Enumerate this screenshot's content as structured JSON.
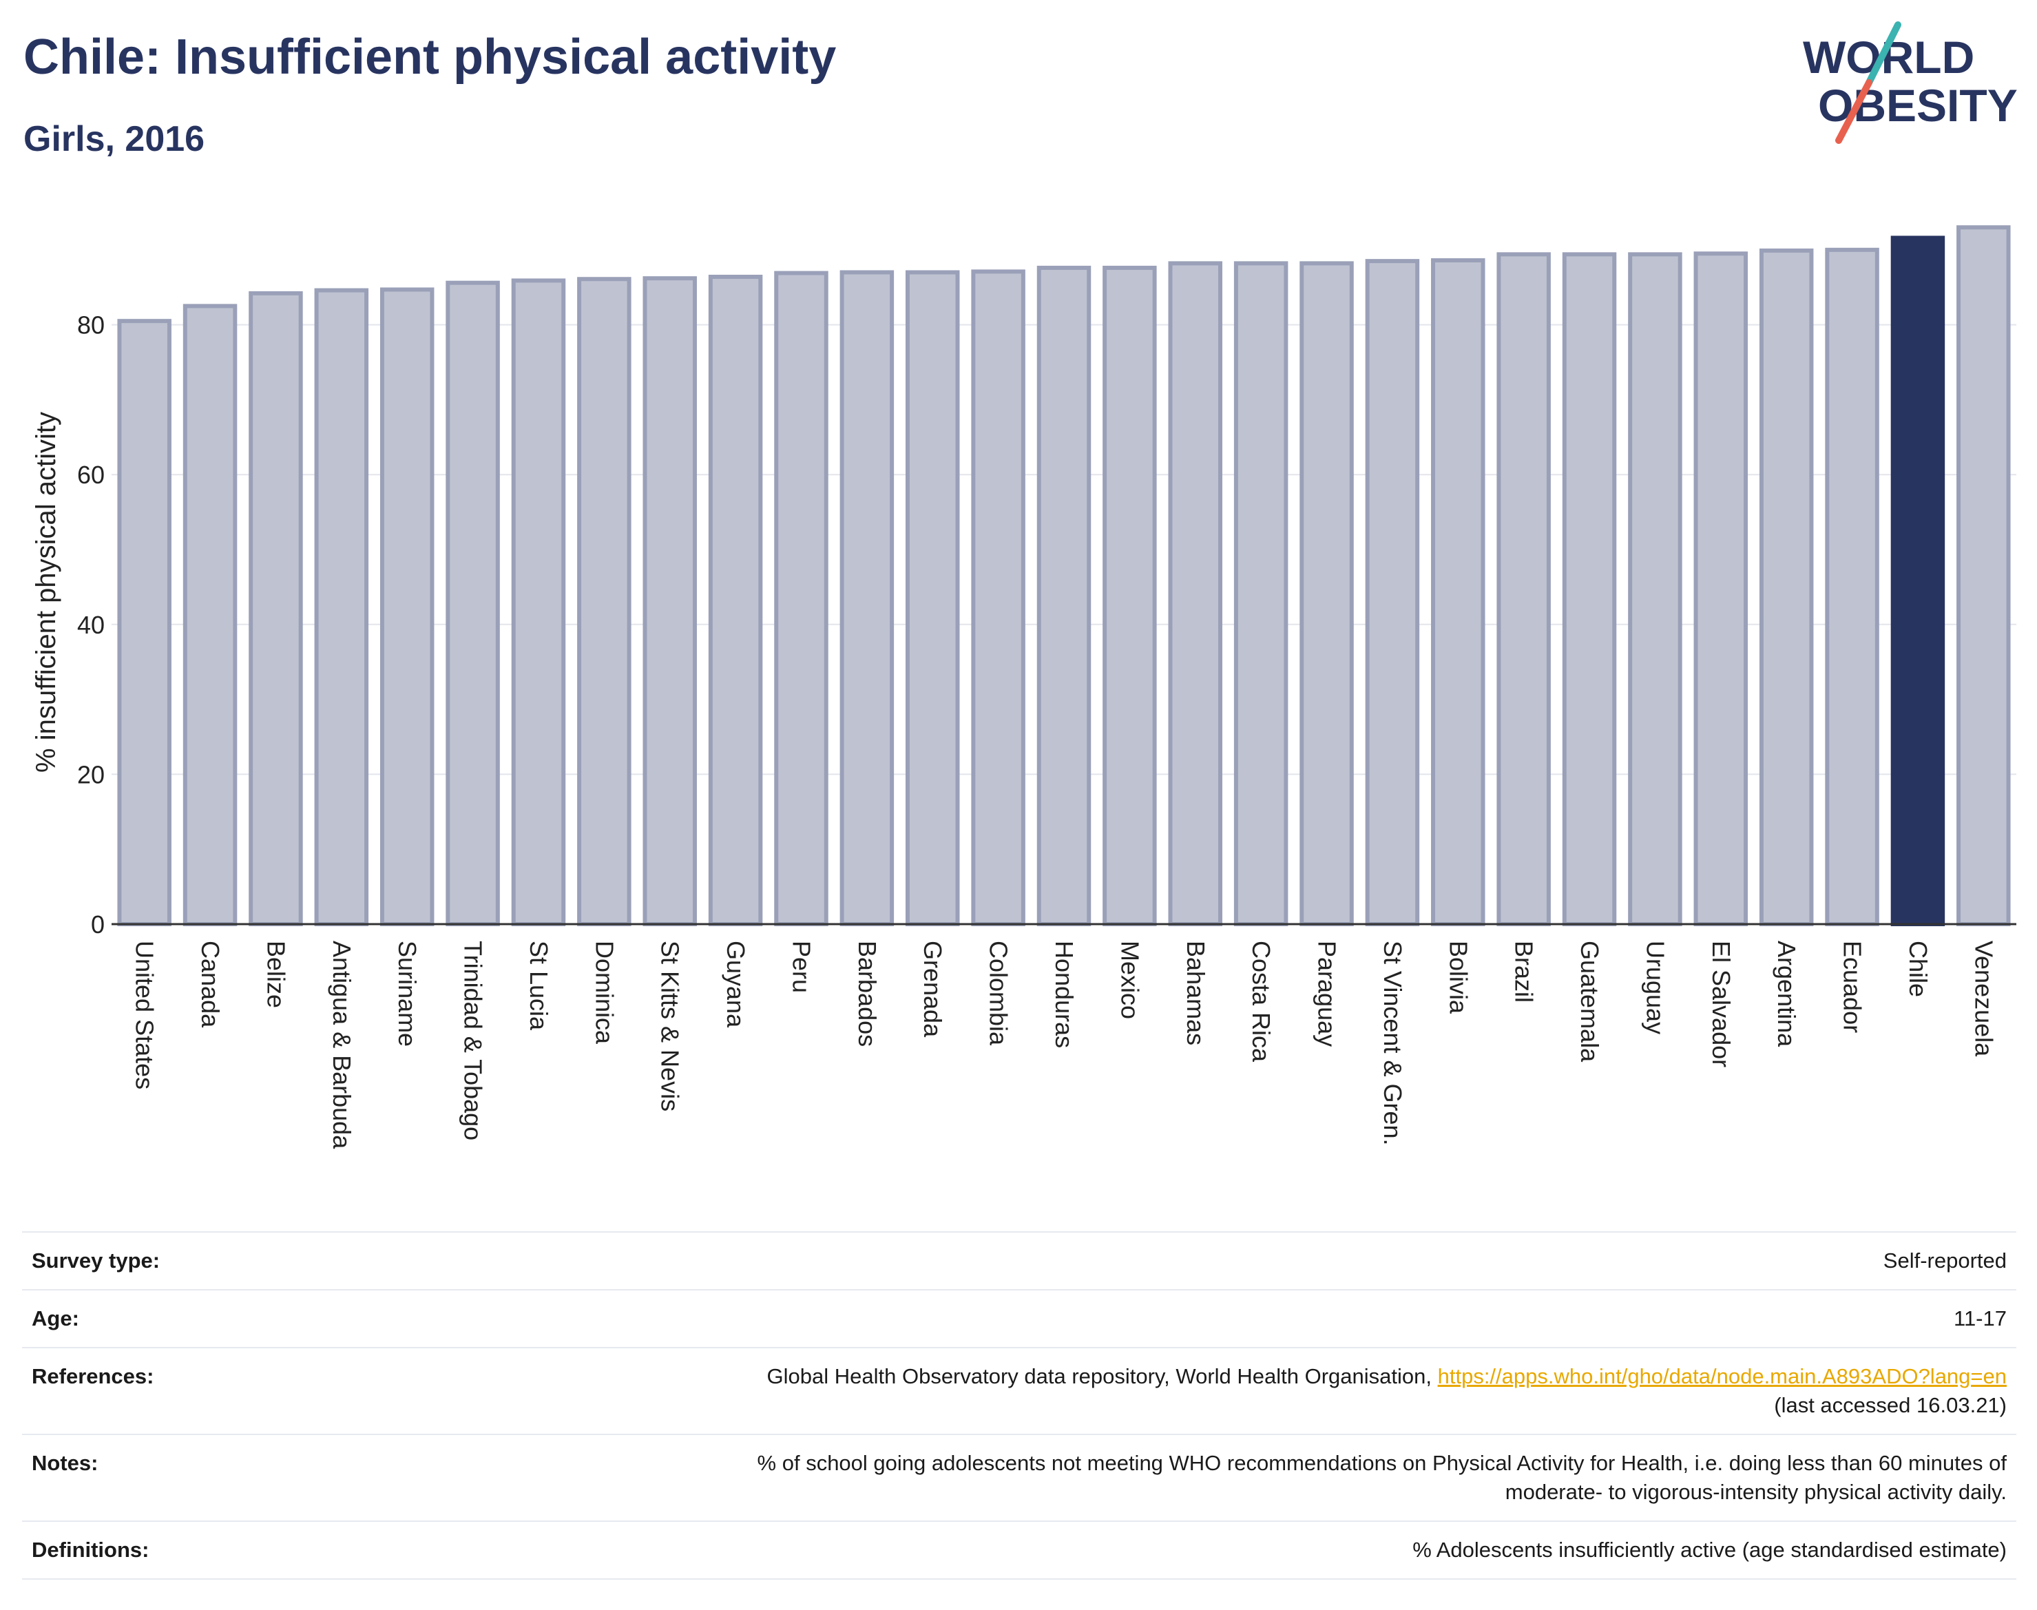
{
  "header": {
    "title": "Chile: Insufficient physical activity",
    "subtitle": "Girls, 2016"
  },
  "logo": {
    "line1": "WORLD",
    "line2": "OBESITY"
  },
  "colors": {
    "brand_navy": "#283460",
    "bar_default": "#bfc3d1",
    "bar_default_stroke": "#9aa0b8",
    "bar_highlight": "#283460",
    "logo_teal": "#3bb3b0",
    "logo_coral": "#e8614e",
    "link": "#e8a800"
  },
  "chart_data": {
    "type": "bar",
    "ylabel": "% insufficient physical activity",
    "ylim": [
      0,
      95
    ],
    "yticks": [
      0,
      20,
      40,
      60,
      80
    ],
    "grid": true,
    "highlight": "Chile",
    "categories": [
      "United States",
      "Canada",
      "Belize",
      "Antigua & Barbuda",
      "Suriname",
      "Trinidad & Tobago",
      "St Lucia",
      "Dominica",
      "St Kitts & Nevis",
      "Guyana",
      "Peru",
      "Barbados",
      "Grenada",
      "Colombia",
      "Honduras",
      "Mexico",
      "Bahamas",
      "Costa Rica",
      "Paraguay",
      "St Vincent & Gren.",
      "Bolivia",
      "Brazil",
      "Guatemala",
      "Uruguay",
      "El Salvador",
      "Argentina",
      "Ecuador",
      "Chile",
      "Venezuela"
    ],
    "values": [
      80.5,
      82.5,
      84.2,
      84.6,
      84.7,
      85.6,
      85.9,
      86.1,
      86.2,
      86.4,
      86.9,
      87.0,
      87.0,
      87.1,
      87.6,
      87.6,
      88.2,
      88.2,
      88.2,
      88.5,
      88.6,
      89.4,
      89.4,
      89.4,
      89.5,
      89.9,
      90.0,
      91.6,
      93.0
    ]
  },
  "info": {
    "survey_type": {
      "label": "Survey type:",
      "value": "Self-reported"
    },
    "age": {
      "label": "Age:",
      "value": "11-17"
    },
    "references": {
      "label": "References:",
      "text": "Global Health Observatory data repository, World Health Organisation, ",
      "link": "https://apps.who.int/gho/data/node.main.A893ADO?lang=en",
      "accessed": "(last accessed 16.03.21)"
    },
    "notes": {
      "label": "Notes:",
      "line1": "% of school going adolescents not meeting WHO recommendations on Physical Activity for Health, i.e. doing less than 60 minutes of",
      "line2": "moderate- to vigorous-intensity physical activity daily."
    },
    "definitions": {
      "label": "Definitions:",
      "value": "% Adolescents insufficiently active (age standardised estimate)"
    }
  }
}
